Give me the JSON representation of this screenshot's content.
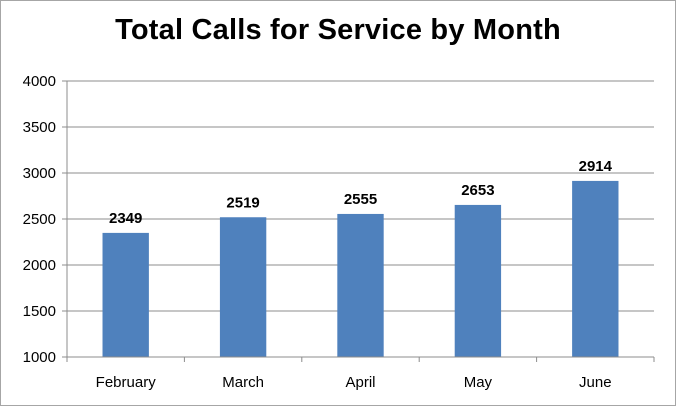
{
  "chart_data": {
    "type": "bar",
    "title": "Total Calls for Service by Month",
    "xlabel": "",
    "ylabel": "",
    "categories": [
      "February",
      "March",
      "April",
      "May",
      "June"
    ],
    "values": [
      2349,
      2519,
      2555,
      2653,
      2914
    ],
    "data_labels": [
      "2349",
      "2519",
      "2555",
      "2653",
      "2914"
    ],
    "ylim": [
      1000,
      4000
    ],
    "yticks": [
      1000,
      1500,
      2000,
      2500,
      3000,
      3500,
      4000
    ],
    "ytick_labels": [
      "1000",
      "1500",
      "2000",
      "2500",
      "3000",
      "3500",
      "4000"
    ],
    "grid": true,
    "legend": "none",
    "colors": {
      "bar": "#4f81bd",
      "grid": "#8c8c8c",
      "axis": "#8c8c8c",
      "border": "#a6a6a6"
    }
  }
}
